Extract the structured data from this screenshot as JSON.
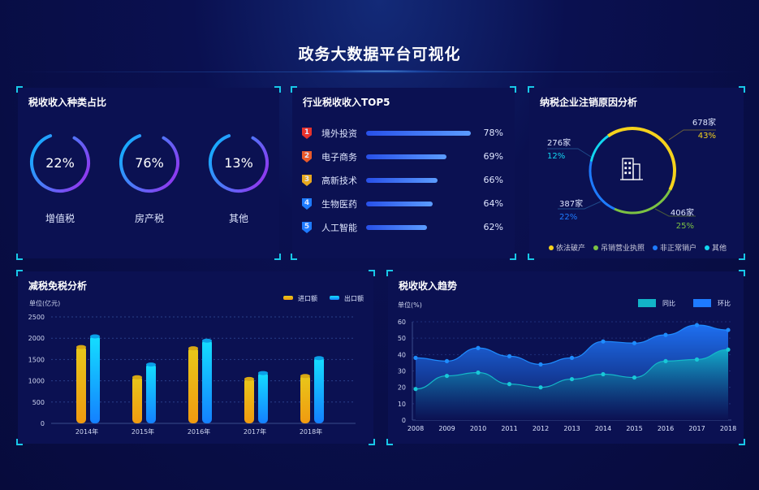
{
  "title": "政务大数据平台可视化",
  "colors": {
    "accent": "#18c8e8",
    "yellow": "#f5d21c",
    "green": "#7cc243",
    "blue": "#1e7bff",
    "cyan": "#12d6f0"
  },
  "tax_types": {
    "title": "税收收入种类占比",
    "items": [
      {
        "label": "增值税",
        "pct": "22%",
        "value": 22
      },
      {
        "label": "房产税",
        "pct": "76%",
        "value": 76
      },
      {
        "label": "其他",
        "pct": "13%",
        "value": 13
      }
    ]
  },
  "top5": {
    "title": "行业税收收入TOP5",
    "items": [
      {
        "rank": "1",
        "label": "境外投资",
        "pct": "78%",
        "value": 78,
        "color": "#e8322c"
      },
      {
        "rank": "2",
        "label": "电子商务",
        "pct": "69%",
        "value": 69,
        "color": "#ea5a2a"
      },
      {
        "rank": "3",
        "label": "高新技术",
        "pct": "66%",
        "value": 66,
        "color": "#e8a81e"
      },
      {
        "rank": "4",
        "label": "生物医药",
        "pct": "64%",
        "value": 64,
        "color": "#1e7bff"
      },
      {
        "rank": "5",
        "label": "人工智能",
        "pct": "62%",
        "value": 62,
        "color": "#1e7bff"
      }
    ]
  },
  "cancel": {
    "title": "纳税企业注销原因分析",
    "icon": "building-icon",
    "segments": [
      {
        "name": "依法破产",
        "count": "678家",
        "pct": "43%",
        "value": 43,
        "color": "#f5d21c"
      },
      {
        "name": "吊销营业执照",
        "count": "406家",
        "pct": "25%",
        "value": 25,
        "color": "#7cc243"
      },
      {
        "name": "非正常销户",
        "count": "387家",
        "pct": "22%",
        "value": 22,
        "color": "#1e7bff"
      },
      {
        "name": "其他",
        "count": "276家",
        "pct": "12%",
        "value": 12,
        "color": "#12d6f0"
      }
    ]
  },
  "chart_data": [
    {
      "type": "bar",
      "title": "减税免税分析",
      "ylabel": "单位(亿元)",
      "ylim": [
        0,
        2500
      ],
      "yticks": [
        0,
        500,
        1000,
        1500,
        2000,
        2500
      ],
      "grid": true,
      "legend": "top-right",
      "categories": [
        "2014年",
        "2015年",
        "2016年",
        "2017年",
        "2018年"
      ],
      "series": [
        {
          "name": "进口额",
          "values": [
            1830,
            1120,
            1800,
            1080,
            1150
          ],
          "color": "#f0b418"
        },
        {
          "name": "出口额",
          "values": [
            2080,
            1420,
            1980,
            1220,
            1570
          ],
          "color": "#12b8ff"
        }
      ]
    },
    {
      "type": "area",
      "title": "税收收入趋势",
      "ylabel": "单位(%)",
      "ylim": [
        0,
        60
      ],
      "yticks": [
        0,
        10,
        20,
        30,
        40,
        50,
        60
      ],
      "grid": true,
      "legend": "top-right",
      "categories": [
        "2008",
        "2009",
        "2010",
        "2011",
        "2012",
        "2013",
        "2014",
        "2015",
        "2016",
        "2017",
        "2018"
      ],
      "series": [
        {
          "name": "同比",
          "values": [
            19,
            27,
            29,
            22,
            20,
            25,
            28,
            26,
            36,
            37,
            43
          ],
          "color": "#12b4c8"
        },
        {
          "name": "环比",
          "values": [
            38,
            36,
            44,
            39,
            34,
            38,
            48,
            47,
            52,
            58,
            55
          ],
          "color": "#1e7bff"
        }
      ]
    }
  ]
}
